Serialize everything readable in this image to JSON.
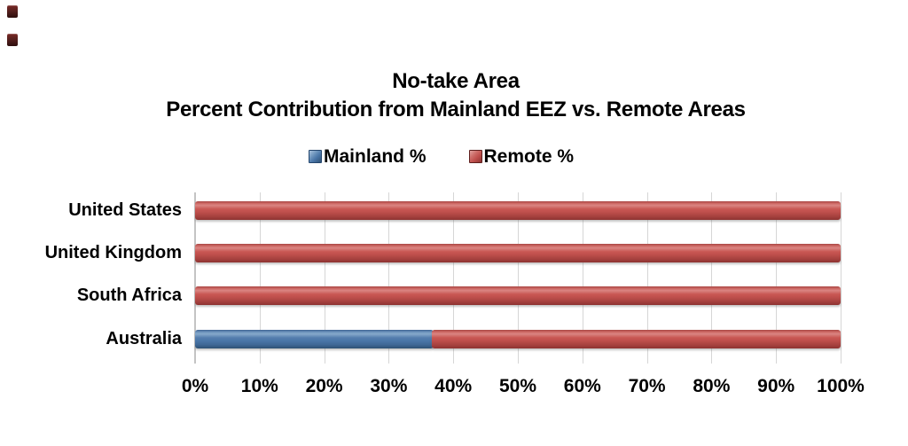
{
  "decorations": {
    "top_left_squares": {
      "count": 2,
      "color": "#5f1d1c"
    }
  },
  "chart_data": {
    "type": "bar",
    "orientation": "horizontal",
    "stacked": true,
    "title_lines": [
      "No-take Area",
      "Percent Contribution from Mainland EEZ vs. Remote Areas"
    ],
    "categories": [
      "United States",
      "United Kingdom",
      "South Africa",
      "Australia"
    ],
    "series": [
      {
        "name": "Mainland %",
        "color": "#4a76a8",
        "values": [
          0,
          0,
          0,
          37
        ]
      },
      {
        "name": "Remote %",
        "color": "#c0504d",
        "values": [
          100,
          100,
          100,
          63
        ]
      }
    ],
    "xlim": [
      0,
      100
    ],
    "x_ticks": [
      "0%",
      "10%",
      "20%",
      "30%",
      "40%",
      "50%",
      "60%",
      "70%",
      "80%",
      "90%",
      "100%"
    ],
    "grid": true,
    "legend_position": "top-center",
    "colors": {
      "mainland_blue": "#4a76a8",
      "remote_red": "#c0504d",
      "gridline": "#d6d6d6",
      "text": "#000000",
      "background": "#ffffff"
    }
  }
}
